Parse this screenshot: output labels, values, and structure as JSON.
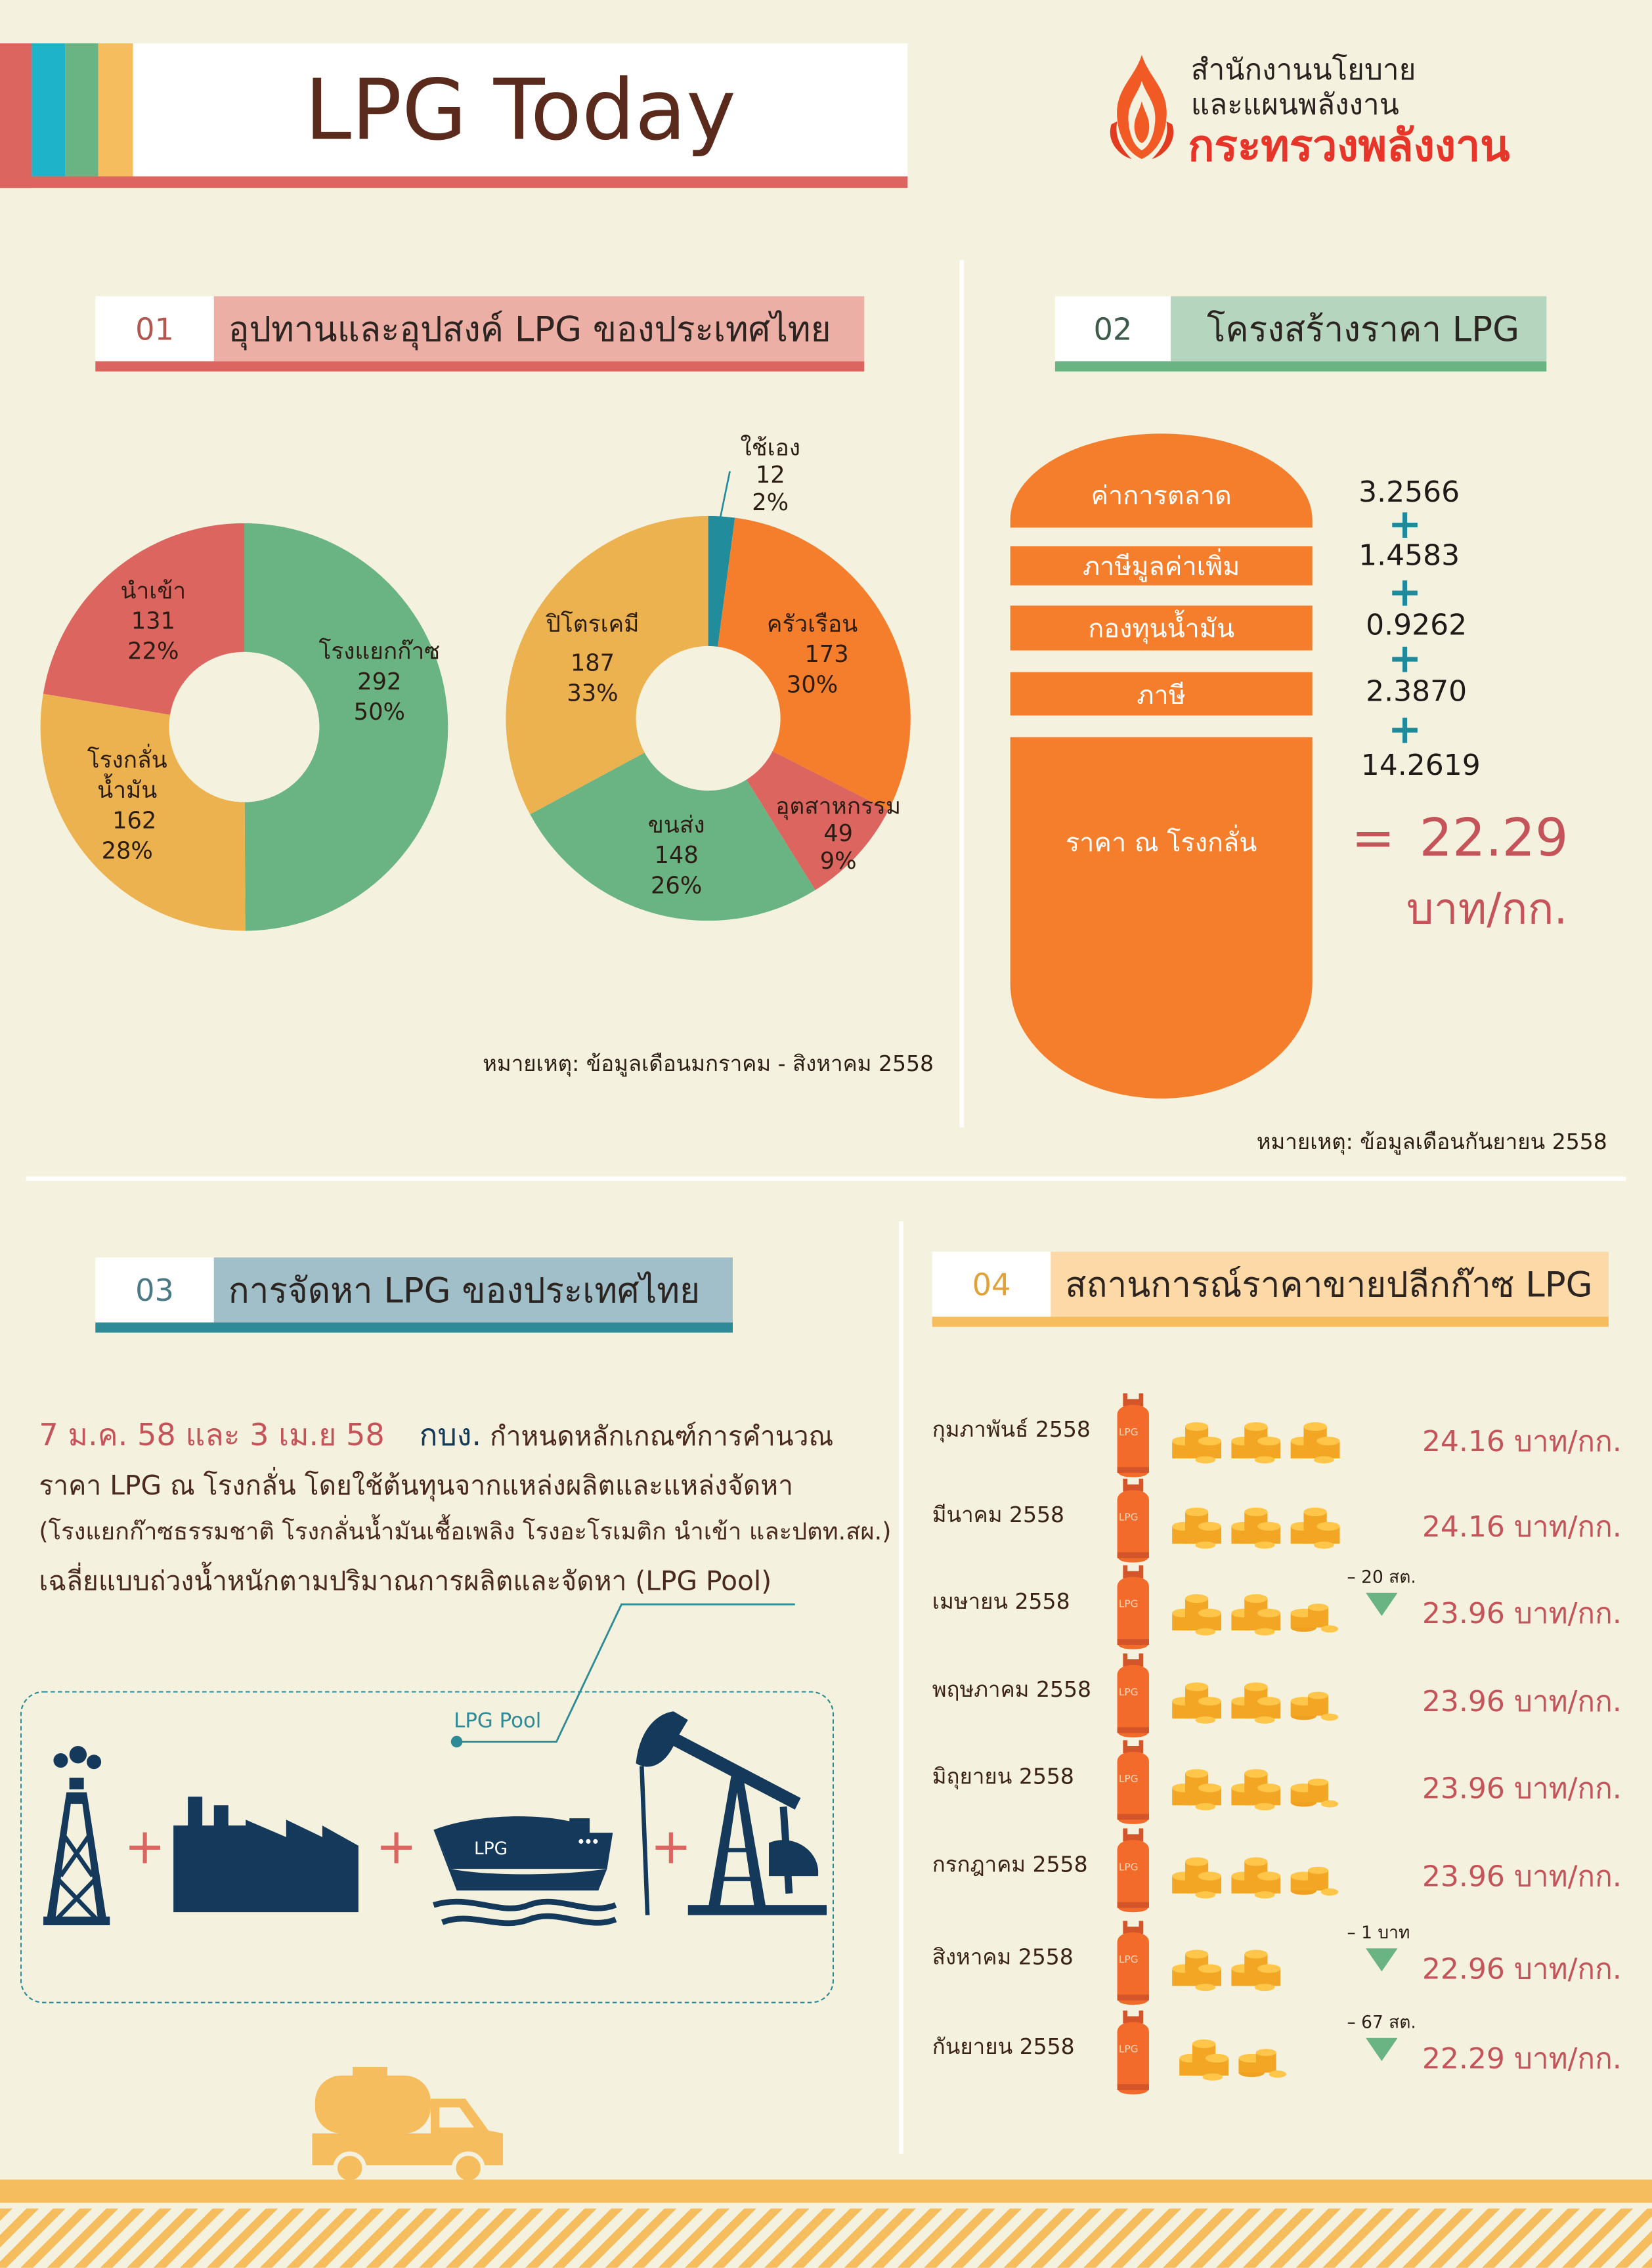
{
  "header": {
    "title": "LPG Today",
    "org_line1": "สำนักงานนโยบาย",
    "org_line2": "และแผนพลังงาน",
    "ministry": "กระทรวงพลังงาน",
    "stripe_colors": [
      "#dd6560",
      "#1fb3c9",
      "#6ab382",
      "#f6bd5e"
    ]
  },
  "section1": {
    "number": "01",
    "title": "อุปทานและอุปสงค์ LPG ของประเทศไทย",
    "note": "หมายเหตุ: ข้อมูลเดือนมกราคม - สิงหาคม 2558"
  },
  "chart_data": [
    {
      "type": "pie",
      "style": "donut",
      "slices": [
        {
          "label": "โรงแยกก๊าซ",
          "value": 292,
          "percent": "50%",
          "color": "#6ab382"
        },
        {
          "label": "โรงกลั่น น้ำมัน",
          "value": 162,
          "percent": "28%",
          "color": "#ecb24f"
        },
        {
          "label": "นำเข้า",
          "value": 131,
          "percent": "22%",
          "color": "#dd6560"
        }
      ]
    },
    {
      "type": "pie",
      "style": "donut",
      "slices": [
        {
          "label": "ใช้เอง",
          "value": 12,
          "percent": "2%",
          "color": "#218c9c"
        },
        {
          "label": "ครัวเรือน",
          "value": 173,
          "percent": "30%",
          "color": "#f57e2c"
        },
        {
          "label": "อุตสาหกรรม",
          "value": 49,
          "percent": "9%",
          "color": "#dd6560"
        },
        {
          "label": "ขนส่ง",
          "value": 148,
          "percent": "26%",
          "color": "#6ab382"
        },
        {
          "label": "ปิโตรเคมี",
          "value": 187,
          "percent": "33%",
          "color": "#ecb24f"
        }
      ]
    }
  ],
  "section2": {
    "number": "02",
    "title": "โครงสร้างราคา LPG",
    "components": [
      {
        "label": "ค่าการตลาด",
        "value": "3.2566"
      },
      {
        "label": "ภาษีมูลค่าเพิ่ม",
        "value": "1.4583"
      },
      {
        "label": "กองทุนน้ำมัน",
        "value": "0.9262"
      },
      {
        "label": "ภาษี",
        "value": "2.3870"
      },
      {
        "label": "ราคา ณ โรงกลั่น",
        "value": "14.2619"
      }
    ],
    "plus": "+",
    "equals": "=",
    "total": "22.29",
    "unit": "บาท/กก.",
    "note": "หมายเหตุ: ข้อมูลเดือนกันยายน 2558"
  },
  "section3": {
    "number": "03",
    "title": "การจัดหา LPG ของประเทศไทย",
    "dates": "7 ม.ค. 58 และ  3 เม.ย 58",
    "agency": "กบง.",
    "line1_rest": "กำหนดหลักเกณฑ์การคำนวณ",
    "line2": "ราคา LPG ณ โรงกลั่น โดยใช้ต้นทุนจากแหล่งผลิตและแหล่งจัดหา",
    "line3": "(โรงแยกก๊าซธรรมชาติ โรงกลั่นน้ำมันเชื้อเพลิง โรงอะโรเมติก นำเข้า และปตท.สผ.)",
    "line4": "เฉลี่ยแบบถ่วงน้ำหนักตามปริมาณการผลิตและจัดหา (LPG Pool)",
    "pool_label": "LPG Pool",
    "ship_label": "LPG",
    "plus": "+"
  },
  "section4": {
    "number": "04",
    "title": "สถานการณ์ราคาขายปลีกก๊าซ LPG",
    "cylinder_label": "LPG",
    "rows": [
      {
        "month": "กุมภาพันธ์ 2558",
        "price": "24.16 บาท/กก.",
        "change": "",
        "coin_stacks": 3
      },
      {
        "month": "มีนาคม 2558",
        "price": "24.16 บาท/กก.",
        "change": "",
        "coin_stacks": 3
      },
      {
        "month": "เมษายน 2558",
        "price": "23.96 บาท/กก.",
        "change": "20 สต.",
        "coin_stacks": 2.5
      },
      {
        "month": "พฤษภาคม 2558",
        "price": "23.96 บาท/กก.",
        "change": "",
        "coin_stacks": 2.5
      },
      {
        "month": "มิถุยายน 2558",
        "price": "23.96 บาท/กก.",
        "change": "",
        "coin_stacks": 2.5
      },
      {
        "month": "กรกฎาคม 2558",
        "price": "23.96 บาท/กก.",
        "change": "",
        "coin_stacks": 2.5
      },
      {
        "month": "สิงหาคม 2558",
        "price": "22.96 บาท/กก.",
        "change": "1 บาท",
        "coin_stacks": 2
      },
      {
        "month": "กันยายน 2558",
        "price": "22.29 บาท/กก.",
        "change": "67 สต.",
        "coin_stacks": 1.5
      }
    ]
  }
}
